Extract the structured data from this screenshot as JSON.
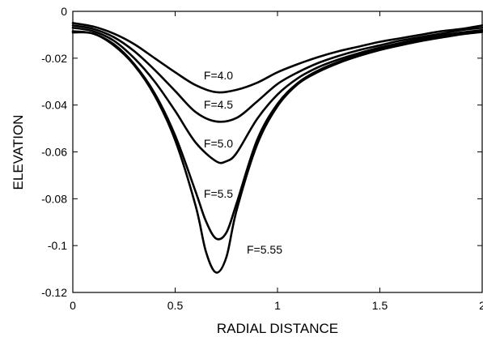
{
  "chart_data": {
    "type": "line",
    "xlabel": "RADIAL DISTANCE",
    "ylabel": "ELEVATION",
    "xlim": [
      0,
      2
    ],
    "ylim": [
      -0.12,
      0
    ],
    "grid": false,
    "x_ticks": [
      0,
      0.5,
      1,
      1.5,
      2
    ],
    "x_tick_labels": [
      "0",
      "0.5",
      "1",
      "1.5",
      "2"
    ],
    "y_ticks": [
      0,
      -0.02,
      -0.04,
      -0.06,
      -0.08,
      -0.1,
      -0.12
    ],
    "y_tick_labels": [
      "0",
      "-0.02",
      "-0.04",
      "-0.06",
      "-0.08",
      "-0.1",
      "-0.12"
    ],
    "series": [
      {
        "name": "F=4.0",
        "x": [
          0,
          0.1,
          0.2,
          0.3,
          0.4,
          0.5,
          0.6,
          0.7,
          0.8,
          0.9,
          1.0,
          1.1,
          1.2,
          1.3,
          1.4,
          1.5,
          1.6,
          1.7,
          1.8,
          1.9,
          2.0
        ],
        "y": [
          -0.005,
          -0.0065,
          -0.0095,
          -0.014,
          -0.02,
          -0.026,
          -0.0315,
          -0.0345,
          -0.0335,
          -0.0305,
          -0.026,
          -0.0225,
          -0.0195,
          -0.017,
          -0.015,
          -0.013,
          -0.0115,
          -0.01,
          -0.0085,
          -0.0075,
          -0.006
        ]
      },
      {
        "name": "F=4.5",
        "x": [
          0,
          0.1,
          0.2,
          0.3,
          0.4,
          0.5,
          0.6,
          0.7,
          0.8,
          0.9,
          1.0,
          1.1,
          1.2,
          1.3,
          1.4,
          1.5,
          1.6,
          1.7,
          1.8,
          1.9,
          2.0
        ],
        "y": [
          -0.006,
          -0.0075,
          -0.011,
          -0.017,
          -0.025,
          -0.034,
          -0.043,
          -0.047,
          -0.0455,
          -0.0385,
          -0.031,
          -0.026,
          -0.022,
          -0.019,
          -0.0165,
          -0.0145,
          -0.0125,
          -0.011,
          -0.0095,
          -0.008,
          -0.007
        ]
      },
      {
        "name": "F=5.0",
        "x": [
          0,
          0.1,
          0.2,
          0.3,
          0.4,
          0.5,
          0.6,
          0.7,
          0.75,
          0.8,
          0.9,
          1.0,
          1.1,
          1.2,
          1.3,
          1.4,
          1.5,
          1.6,
          1.7,
          1.8,
          1.9,
          2.0
        ],
        "y": [
          -0.007,
          -0.0085,
          -0.0125,
          -0.02,
          -0.03,
          -0.0425,
          -0.056,
          -0.064,
          -0.064,
          -0.0605,
          -0.046,
          -0.0355,
          -0.0285,
          -0.0238,
          -0.0205,
          -0.0178,
          -0.0155,
          -0.0135,
          -0.0118,
          -0.0103,
          -0.009,
          -0.008
        ]
      },
      {
        "name": "F=5.5",
        "x": [
          0,
          0.1,
          0.2,
          0.3,
          0.4,
          0.5,
          0.6,
          0.65,
          0.7,
          0.75,
          0.8,
          0.9,
          1.0,
          1.1,
          1.2,
          1.3,
          1.4,
          1.5,
          1.6,
          1.7,
          1.8,
          1.9,
          2.0
        ],
        "y": [
          -0.0085,
          -0.0095,
          -0.014,
          -0.0225,
          -0.035,
          -0.053,
          -0.077,
          -0.0895,
          -0.097,
          -0.0945,
          -0.082,
          -0.055,
          -0.0395,
          -0.0305,
          -0.0252,
          -0.0215,
          -0.0185,
          -0.016,
          -0.014,
          -0.0122,
          -0.0107,
          -0.0095,
          -0.0085
        ]
      },
      {
        "name": "F=5.55",
        "x": [
          0,
          0.1,
          0.2,
          0.3,
          0.4,
          0.5,
          0.6,
          0.65,
          0.7,
          0.75,
          0.8,
          0.9,
          1.0,
          1.1,
          1.2,
          1.3,
          1.4,
          1.5,
          1.6,
          1.7,
          1.8,
          1.9,
          2.0
        ],
        "y": [
          -0.009,
          -0.0095,
          -0.0145,
          -0.023,
          -0.036,
          -0.055,
          -0.083,
          -0.1025,
          -0.1115,
          -0.105,
          -0.085,
          -0.057,
          -0.0405,
          -0.031,
          -0.0258,
          -0.022,
          -0.019,
          -0.0165,
          -0.0145,
          -0.0127,
          -0.0112,
          -0.0098,
          -0.0088
        ]
      }
    ],
    "annotations": [
      "F=4.0",
      "F=4.5",
      "F=5.0",
      "F=5.5",
      "F=5.55"
    ]
  }
}
